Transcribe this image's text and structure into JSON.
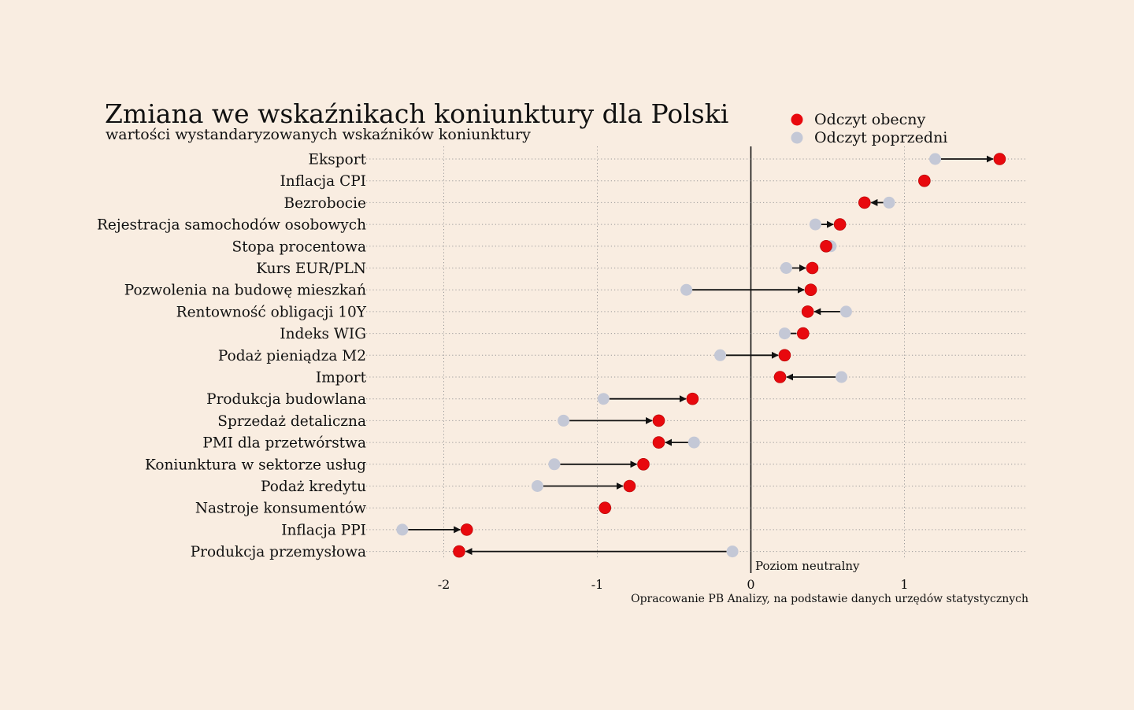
{
  "colors": {
    "background": "#f9ede1",
    "current": "#e8090e",
    "previous": "#c4c8d6",
    "axis": "#111111",
    "grid": "#9a9a9a"
  },
  "chart_data": {
    "type": "dumbbell",
    "title": "Zmiana we wskaźnikach koniunktury dla Polski",
    "subtitle": "wartości wystandaryzowanych wskaźników koniunktury",
    "source": "Opracowanie PB Analizy, na podstawie danych urzędów statystycznych",
    "neutral_label": "Poziom neutralny",
    "legend": [
      {
        "key": "current",
        "label": "Odczyt obecny"
      },
      {
        "key": "previous",
        "label": "Odczyt poprzedni"
      }
    ],
    "legend_position": "top-right",
    "xlim": [
      -2.5,
      1.8
    ],
    "xticks": [
      {
        "value": -2,
        "label": "-2"
      },
      {
        "value": -1,
        "label": "-1"
      },
      {
        "value": 0,
        "label": "0"
      },
      {
        "value": 1,
        "label": "1"
      }
    ],
    "grid": true,
    "categories": [
      {
        "label": "Eksport",
        "previous": 1.2,
        "current": 1.62
      },
      {
        "label": "Inflacja CPI",
        "previous": 1.13,
        "current": 1.13
      },
      {
        "label": "Bezrobocie",
        "previous": 0.9,
        "current": 0.74
      },
      {
        "label": "Rejestracja samochodów osobowych",
        "previous": 0.42,
        "current": 0.58
      },
      {
        "label": "Stopa procentowa",
        "previous": 0.52,
        "current": 0.49
      },
      {
        "label": "Kurs EUR/PLN",
        "previous": 0.23,
        "current": 0.4
      },
      {
        "label": "Pozwolenia na budowę mieszkań",
        "previous": -0.42,
        "current": 0.39
      },
      {
        "label": "Rentowność obligacji 10Y",
        "previous": 0.62,
        "current": 0.37
      },
      {
        "label": "Indeks WIG",
        "previous": 0.22,
        "current": 0.34
      },
      {
        "label": "Podaż pieniądza M2",
        "previous": -0.2,
        "current": 0.22
      },
      {
        "label": "Import",
        "previous": 0.59,
        "current": 0.19
      },
      {
        "label": "Produkcja budowlana",
        "previous": -0.96,
        "current": -0.38
      },
      {
        "label": "Sprzedaż detaliczna",
        "previous": -1.22,
        "current": -0.6
      },
      {
        "label": "PMI dla przetwórstwa",
        "previous": -0.37,
        "current": -0.6
      },
      {
        "label": "Koniunktura w sektorze usług",
        "previous": -1.28,
        "current": -0.7
      },
      {
        "label": "Podaż kredytu",
        "previous": -1.39,
        "current": -0.79
      },
      {
        "label": "Nastroje konsumentów",
        "previous": -0.95,
        "current": -0.95
      },
      {
        "label": "Inflacja PPI",
        "previous": -2.27,
        "current": -1.85
      },
      {
        "label": "Produkcja przemysłowa",
        "previous": -0.12,
        "current": -1.9
      }
    ]
  }
}
